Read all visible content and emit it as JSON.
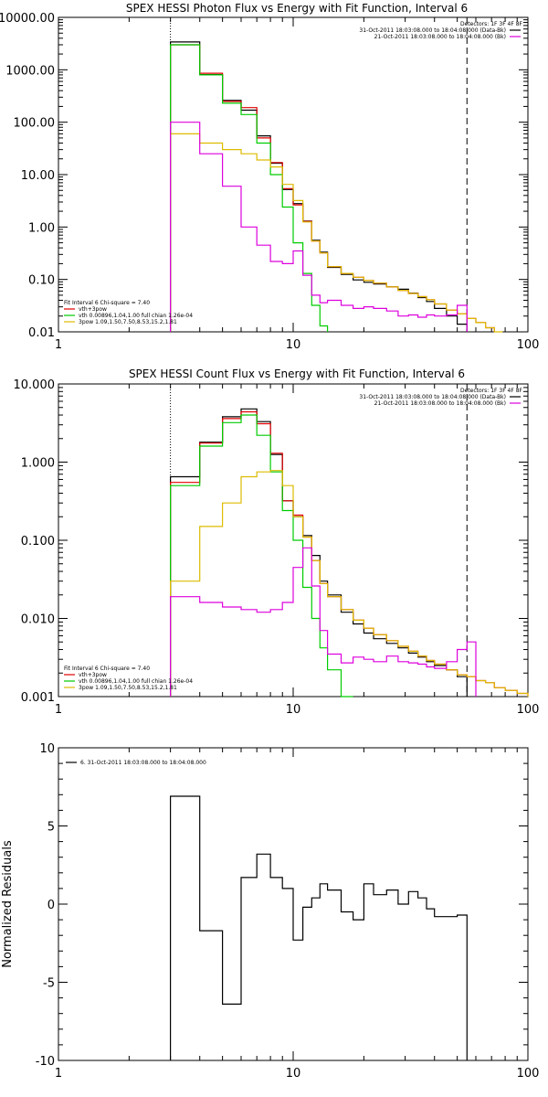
{
  "chart_data": [
    {
      "type": "line",
      "title": "SPEX HESSI Photon Flux vs Energy with Fit Function, Interval 6",
      "xscale": "log",
      "yscale": "log",
      "xlim": [
        1,
        100
      ],
      "ylim": [
        0.01,
        10000
      ],
      "x_ticks": [
        "1",
        "10",
        "100"
      ],
      "y_ticks": [
        "0.01",
        "0.10",
        "1.00",
        "10.00",
        "100.00",
        "1000.00",
        "10000.00"
      ],
      "x_edges": [
        3,
        4,
        5,
        6,
        7,
        8,
        9,
        10,
        11,
        12,
        13,
        14,
        16,
        18,
        20,
        22,
        25,
        28,
        31,
        34,
        37,
        40,
        45,
        50,
        55,
        60,
        66,
        72,
        78
      ],
      "series": [
        {
          "name": "data",
          "color": "#000000",
          "values": [
            3400,
            810,
            260,
            170,
            55,
            16.5,
            5.2,
            2.8,
            1.3,
            0.56,
            0.33,
            0.17,
            0.125,
            0.098,
            0.088,
            0.082,
            0.072,
            0.065,
            0.055,
            0.045,
            0.038,
            0.028,
            0.02,
            0.014,
            null,
            null,
            null,
            null
          ]
        },
        {
          "name": "vth+3pow",
          "color": "#e00000",
          "values": [
            3000,
            860,
            250,
            190,
            50,
            17,
            5.4,
            2.65,
            1.28,
            0.54,
            0.32,
            0.175,
            0.13,
            0.11,
            0.095,
            0.085,
            0.072,
            0.062,
            0.054,
            0.047,
            0.041,
            0.034,
            0.026,
            0.022,
            0.018,
            0.015,
            0.012,
            null
          ]
        },
        {
          "name": "vth",
          "color": "#00cc00",
          "values": [
            3000,
            800,
            230,
            140,
            40,
            10,
            2.4,
            0.5,
            0.13,
            0.032,
            0.013,
            null,
            null,
            null,
            null,
            null,
            null,
            null,
            null,
            null,
            null,
            null,
            null,
            null,
            null,
            null,
            null,
            null
          ]
        },
        {
          "name": "3pow",
          "color": "#ddbb00",
          "values": [
            60,
            40,
            30,
            25,
            19,
            14,
            6.5,
            3.2,
            1.25,
            0.54,
            0.32,
            0.175,
            0.13,
            0.11,
            0.095,
            0.085,
            0.072,
            0.062,
            0.054,
            0.047,
            0.041,
            0.034,
            0.026,
            0.022,
            0.018,
            0.015,
            0.012,
            0.01
          ]
        },
        {
          "name": "background",
          "color": "#dd00dd",
          "values": [
            100,
            25,
            6,
            1.0,
            0.45,
            0.22,
            0.2,
            0.35,
            0.12,
            0.05,
            0.036,
            0.04,
            0.032,
            0.028,
            0.03,
            0.028,
            0.025,
            0.02,
            0.021,
            0.019,
            0.021,
            0.02,
            0.021,
            0.032,
            null,
            null,
            null,
            null
          ]
        }
      ],
      "legend_top_right": [
        {
          "text": "Detectors: 1F 3F 4F 8F",
          "color": null
        },
        {
          "text": "31-Oct-2011 18:03:08.000 to 18:04:08.000 (Data-Bk)",
          "color": "#000000"
        },
        {
          "text": "21-Oct-2011 18:03:08.000 to 18:04:08.000 (Bk)",
          "color": "#dd00dd"
        }
      ],
      "legend_bottom_left": [
        {
          "text": "Fit Interval  6    Chi-square = 7.40",
          "color": null
        },
        {
          "text": "vth+3pow",
          "color": "#e00000"
        },
        {
          "text": "vth 0.00896,1.04,1.00  full chian 1.26e-04",
          "color": "#00cc00"
        },
        {
          "text": "3pow 1.09,1.50,7.50,8.53,15.2,1.81",
          "color": "#ddbb00"
        }
      ],
      "vlines": [
        {
          "x": 3,
          "style": "dotted"
        },
        {
          "x": 55,
          "style": "dashed"
        }
      ]
    },
    {
      "type": "line",
      "title": "SPEX HESSI Count Flux vs Energy with Fit Function, Interval 6",
      "xscale": "log",
      "yscale": "log",
      "xlim": [
        1,
        100
      ],
      "ylim": [
        0.001,
        10
      ],
      "x_ticks": [
        "1",
        "10",
        "100"
      ],
      "y_ticks": [
        "0.001",
        "0.010",
        "0.100",
        "1.000",
        "10.000"
      ],
      "x_edges": [
        3,
        4,
        5,
        6,
        7,
        8,
        9,
        10,
        11,
        12,
        13,
        14,
        16,
        18,
        20,
        22,
        25,
        28,
        31,
        34,
        37,
        40,
        45,
        50,
        55,
        60,
        66,
        72,
        80,
        90,
        100
      ],
      "series": [
        {
          "name": "data",
          "color": "#000000",
          "values": [
            0.65,
            1.8,
            3.8,
            4.8,
            3.3,
            1.25,
            0.32,
            0.2,
            0.115,
            0.064,
            0.03,
            0.02,
            0.012,
            0.0085,
            0.0065,
            0.0055,
            0.0048,
            0.0042,
            0.0036,
            0.0032,
            0.0028,
            0.0025,
            0.0022,
            0.0018,
            null,
            null,
            null,
            null,
            null,
            null
          ]
        },
        {
          "name": "vth+3pow",
          "color": "#e00000",
          "values": [
            0.55,
            1.75,
            3.6,
            4.4,
            3.1,
            1.3,
            0.32,
            0.21,
            0.11,
            0.055,
            0.028,
            0.019,
            0.013,
            0.0095,
            0.0075,
            0.0062,
            0.0052,
            0.0044,
            0.0038,
            0.0033,
            0.0029,
            0.0026,
            0.0022,
            0.0019,
            0.0018,
            0.0016,
            0.0015,
            0.0013,
            0.0012,
            0.0011
          ]
        },
        {
          "name": "vth",
          "color": "#00cc00",
          "values": [
            0.5,
            1.6,
            3.2,
            4.0,
            2.2,
            0.75,
            0.24,
            0.1,
            0.025,
            0.01,
            0.0042,
            0.0022,
            0.001,
            null,
            null,
            null,
            null,
            null,
            null,
            null,
            null,
            null,
            null,
            null,
            null,
            null,
            null,
            null,
            null,
            null
          ]
        },
        {
          "name": "3pow",
          "color": "#ddbb00",
          "values": [
            0.03,
            0.15,
            0.3,
            0.65,
            0.75,
            0.78,
            0.5,
            0.2,
            0.11,
            0.055,
            0.028,
            0.019,
            0.013,
            0.0095,
            0.0075,
            0.0062,
            0.0052,
            0.0044,
            0.0038,
            0.0033,
            0.0029,
            0.0026,
            0.0022,
            0.0019,
            0.0018,
            0.0016,
            0.0015,
            0.0013,
            0.0012,
            0.0011
          ]
        },
        {
          "name": "background",
          "color": "#dd00dd",
          "values": [
            0.019,
            0.016,
            0.014,
            0.013,
            0.012,
            0.013,
            0.016,
            0.045,
            0.08,
            0.026,
            0.007,
            0.0035,
            0.0027,
            0.0032,
            0.003,
            0.0028,
            0.0033,
            0.0028,
            0.0027,
            0.0026,
            0.0024,
            0.0023,
            0.0028,
            0.004,
            0.005,
            null,
            null,
            null,
            null,
            null
          ]
        }
      ],
      "legend_top_right": [
        {
          "text": "Detectors: 1F 3F 4F 8F",
          "color": null
        },
        {
          "text": "31-Oct-2011 18:03:08.000 to 18:04:08.000 (Data-Bk)",
          "color": "#000000"
        },
        {
          "text": "21-Oct-2011 18:03:08.000 to 18:04:08.000 (Bk)",
          "color": "#dd00dd"
        }
      ],
      "legend_bottom_left": [
        {
          "text": "Fit Interval  6    Chi-square = 7.40",
          "color": null
        },
        {
          "text": "vth+3pow",
          "color": "#e00000"
        },
        {
          "text": "vth 0.00896,1.04,1.00  full chian 1.26e-04",
          "color": "#00cc00"
        },
        {
          "text": "3pow 1.09,1.50,7.50,8.53,15.2,1.81",
          "color": "#ddbb00"
        }
      ],
      "vlines": [
        {
          "x": 3,
          "style": "dotted"
        },
        {
          "x": 55,
          "style": "dashed"
        }
      ]
    },
    {
      "type": "line",
      "title": "",
      "ylabel": "Normalized Residuals",
      "xscale": "log",
      "yscale": "linear",
      "xlim": [
        1,
        100
      ],
      "ylim": [
        -10,
        10
      ],
      "x_ticks": [
        "1",
        "10",
        "100"
      ],
      "y_ticks": [
        "10",
        "5",
        "0",
        "-5",
        "-10"
      ],
      "x_edges": [
        3,
        4,
        5,
        6,
        7,
        8,
        9,
        10,
        11,
        12,
        13,
        14,
        16,
        18,
        20,
        22,
        25,
        28,
        31,
        34,
        37,
        40,
        45,
        50,
        55
      ],
      "series": [
        {
          "name": "6. 31-Oct-2011 18:03:08.000 to 18:04:08.000",
          "color": "#000000",
          "values": [
            6.9,
            -1.7,
            -6.4,
            1.7,
            3.2,
            1.7,
            1.0,
            -2.3,
            -0.2,
            0.4,
            1.3,
            0.9,
            -0.5,
            -1.0,
            1.3,
            0.6,
            0.9,
            0.0,
            0.8,
            0.4,
            -0.3,
            -0.8,
            -0.8,
            -0.7
          ]
        }
      ],
      "legend_top_left": [
        {
          "text": "6. 31-Oct-2011 18:03:08.000 to 18:04:08.000",
          "color": "#000000"
        }
      ]
    }
  ]
}
